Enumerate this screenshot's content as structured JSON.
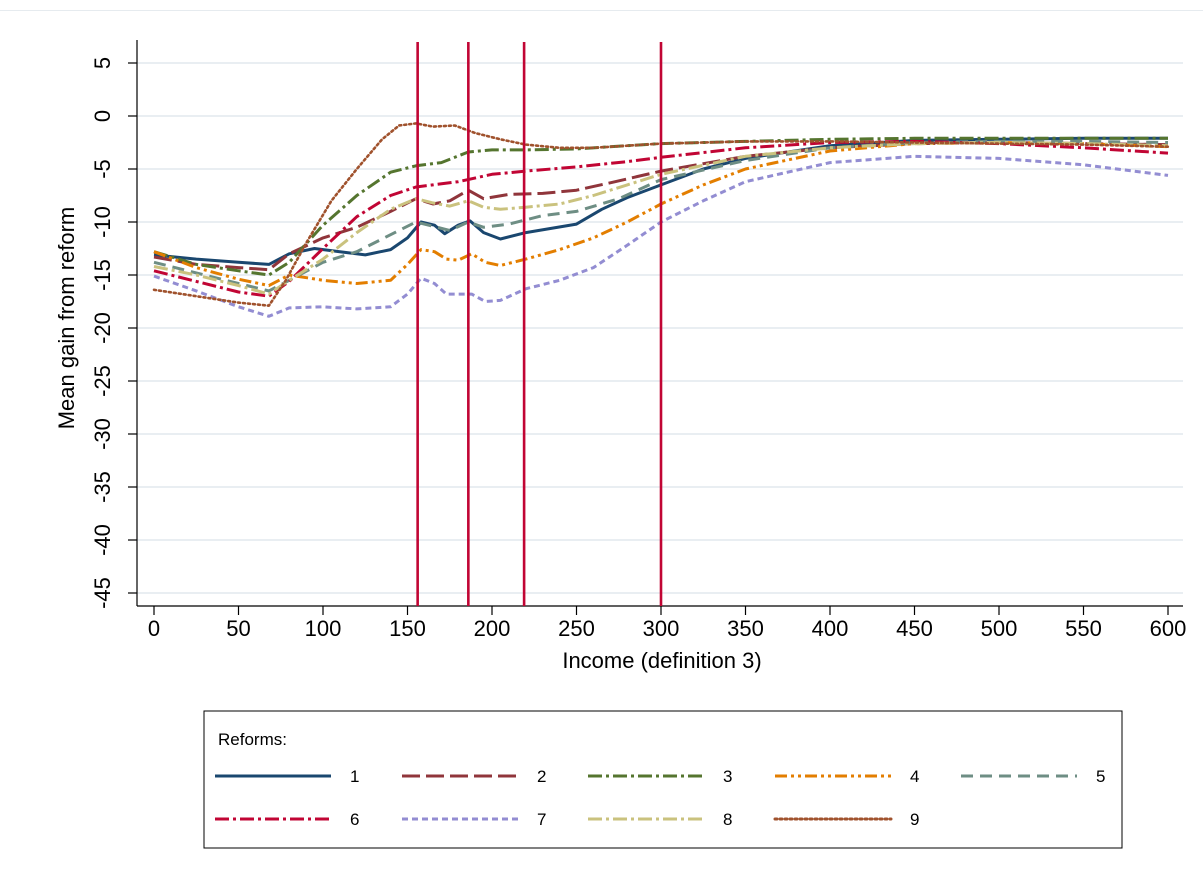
{
  "chart_data": {
    "type": "line",
    "xlabel": "Income (definition 3)",
    "ylabel": "Mean gain from reform",
    "xlim": [
      0,
      600
    ],
    "ylim": [
      -46,
      6
    ],
    "x_ticks": [
      "0",
      "50",
      "100",
      "150",
      "200",
      "250",
      "300",
      "350",
      "400",
      "450",
      "500",
      "550",
      "600"
    ],
    "y_ticks": [
      "5",
      "0",
      "-5",
      "-10",
      "-15",
      "-20",
      "-25",
      "-30",
      "-35",
      "-40",
      "-45"
    ],
    "grid": "horizontal",
    "vertical_lines": {
      "x": [
        156,
        186,
        219,
        300
      ],
      "color": "#c10534"
    },
    "legend": {
      "title": "Reforms:",
      "placement": "bottom"
    },
    "series": [
      {
        "name": "1",
        "color": "#1a476f",
        "dash": "solid",
        "x": [
          0,
          25,
          50,
          68,
          80,
          95,
          110,
          125,
          140,
          150,
          158,
          166,
          172,
          180,
          187,
          195,
          205,
          220,
          235,
          250,
          265,
          280,
          300,
          325,
          350,
          400,
          450,
          500,
          550,
          600
        ],
        "y": [
          -13.1,
          -13.5,
          -13.8,
          -14.0,
          -13.0,
          -12.5,
          -12.8,
          -13.1,
          -12.6,
          -11.5,
          -10.0,
          -10.3,
          -11.1,
          -10.3,
          -9.9,
          -11.0,
          -11.6,
          -11.0,
          -10.6,
          -10.2,
          -8.8,
          -7.7,
          -6.5,
          -5.0,
          -4.0,
          -2.8,
          -2.3,
          -2.2,
          -2.1,
          -2.1
        ]
      },
      {
        "name": "2",
        "color": "#90353b",
        "dash": "longdash",
        "x": [
          0,
          25,
          50,
          68,
          80,
          100,
          120,
          140,
          155,
          165,
          175,
          186,
          195,
          210,
          230,
          250,
          270,
          300,
          350,
          400,
          450,
          500,
          550,
          600
        ],
        "y": [
          -13.3,
          -14.0,
          -14.3,
          -14.5,
          -13.0,
          -11.5,
          -10.5,
          -9.0,
          -7.8,
          -8.3,
          -8.0,
          -7.0,
          -7.8,
          -7.4,
          -7.3,
          -7.0,
          -6.3,
          -5.2,
          -3.8,
          -3.0,
          -2.6,
          -2.5,
          -2.6,
          -2.7
        ]
      },
      {
        "name": "3",
        "color": "#55752f",
        "dash": "dashdot",
        "x": [
          0,
          25,
          50,
          68,
          80,
          100,
          120,
          140,
          155,
          170,
          186,
          200,
          220,
          250,
          280,
          300,
          350,
          400,
          450,
          500,
          550,
          600
        ],
        "y": [
          -12.8,
          -14.0,
          -14.6,
          -15.0,
          -13.8,
          -10.3,
          -7.5,
          -5.3,
          -4.7,
          -4.4,
          -3.4,
          -3.2,
          -3.2,
          -3.1,
          -2.8,
          -2.6,
          -2.4,
          -2.2,
          -2.1,
          -2.1,
          -2.1,
          -2.1
        ]
      },
      {
        "name": "4",
        "color": "#e37e00",
        "dash": "dashdotdot",
        "x": [
          0,
          25,
          50,
          68,
          80,
          100,
          120,
          140,
          150,
          158,
          166,
          173,
          180,
          188,
          196,
          205,
          220,
          240,
          260,
          280,
          300,
          325,
          350,
          400,
          450,
          500,
          550,
          600
        ],
        "y": [
          -12.8,
          -14.3,
          -15.4,
          -16.0,
          -15.0,
          -15.5,
          -15.8,
          -15.5,
          -14.0,
          -12.6,
          -12.8,
          -13.5,
          -13.6,
          -13.0,
          -13.8,
          -14.1,
          -13.5,
          -12.6,
          -11.5,
          -10.0,
          -8.3,
          -6.5,
          -5.0,
          -3.3,
          -2.6,
          -2.5,
          -2.6,
          -2.9
        ]
      },
      {
        "name": "5",
        "color": "#6e8e84",
        "dash": "medashdash",
        "x": [
          0,
          25,
          50,
          68,
          80,
          100,
          120,
          140,
          155,
          165,
          175,
          186,
          195,
          210,
          230,
          250,
          275,
          300,
          350,
          400,
          450,
          500,
          550,
          600
        ],
        "y": [
          -13.8,
          -14.8,
          -15.8,
          -16.5,
          -15.5,
          -13.8,
          -12.8,
          -11.2,
          -10.0,
          -10.4,
          -10.8,
          -10.0,
          -10.5,
          -10.2,
          -9.4,
          -9.0,
          -7.8,
          -6.0,
          -4.2,
          -3.0,
          -2.5,
          -2.4,
          -2.4,
          -2.5
        ]
      },
      {
        "name": "6",
        "color": "#c10534",
        "dash": "dashdot",
        "x": [
          0,
          25,
          50,
          68,
          80,
          100,
          120,
          140,
          155,
          165,
          180,
          200,
          220,
          250,
          280,
          300,
          350,
          400,
          450,
          500,
          550,
          600
        ],
        "y": [
          -14.6,
          -15.6,
          -16.6,
          -17.0,
          -15.6,
          -12.5,
          -9.5,
          -7.5,
          -6.7,
          -6.5,
          -6.2,
          -5.5,
          -5.2,
          -4.8,
          -4.3,
          -3.9,
          -3.0,
          -2.5,
          -2.4,
          -2.6,
          -3.0,
          -3.5
        ]
      },
      {
        "name": "7",
        "color": "#938dd2",
        "dash": "shortdash",
        "x": [
          0,
          25,
          50,
          68,
          80,
          100,
          120,
          140,
          150,
          158,
          166,
          173,
          180,
          188,
          196,
          205,
          220,
          240,
          260,
          280,
          300,
          325,
          350,
          400,
          450,
          500,
          550,
          600
        ],
        "y": [
          -15.1,
          -16.5,
          -18.0,
          -18.9,
          -18.1,
          -18.0,
          -18.2,
          -18.0,
          -16.8,
          -15.3,
          -15.8,
          -16.8,
          -16.8,
          -16.8,
          -17.5,
          -17.4,
          -16.3,
          -15.5,
          -14.3,
          -12.2,
          -10.0,
          -8.0,
          -6.2,
          -4.4,
          -3.8,
          -4.0,
          -4.6,
          -5.6
        ]
      },
      {
        "name": "8",
        "color": "#cac27e",
        "dash": "dashdot",
        "x": [
          0,
          25,
          50,
          68,
          80,
          100,
          120,
          140,
          155,
          165,
          175,
          186,
          195,
          205,
          220,
          240,
          260,
          280,
          300,
          350,
          400,
          450,
          500,
          550,
          600
        ],
        "y": [
          -14.2,
          -15.0,
          -16.0,
          -16.8,
          -15.5,
          -13.5,
          -11.0,
          -8.8,
          -7.8,
          -8.2,
          -8.5,
          -8.0,
          -8.6,
          -8.8,
          -8.6,
          -8.3,
          -7.5,
          -6.5,
          -5.5,
          -3.8,
          -3.0,
          -2.6,
          -2.5,
          -2.6,
          -2.8
        ]
      },
      {
        "name": "9",
        "color": "#a0522d",
        "dash": "dot",
        "x": [
          0,
          25,
          50,
          68,
          78,
          90,
          105,
          120,
          135,
          145,
          155,
          165,
          178,
          190,
          205,
          220,
          240,
          260,
          280,
          300,
          350,
          400,
          450,
          500,
          550,
          600
        ],
        "y": [
          -16.4,
          -17.0,
          -17.6,
          -17.9,
          -15.5,
          -12.0,
          -8.0,
          -5.0,
          -2.2,
          -0.9,
          -0.7,
          -1.0,
          -0.9,
          -1.6,
          -2.2,
          -2.7,
          -3.0,
          -3.0,
          -2.8,
          -2.6,
          -2.4,
          -2.4,
          -2.5,
          -2.6,
          -2.7,
          -2.9
        ]
      }
    ]
  }
}
